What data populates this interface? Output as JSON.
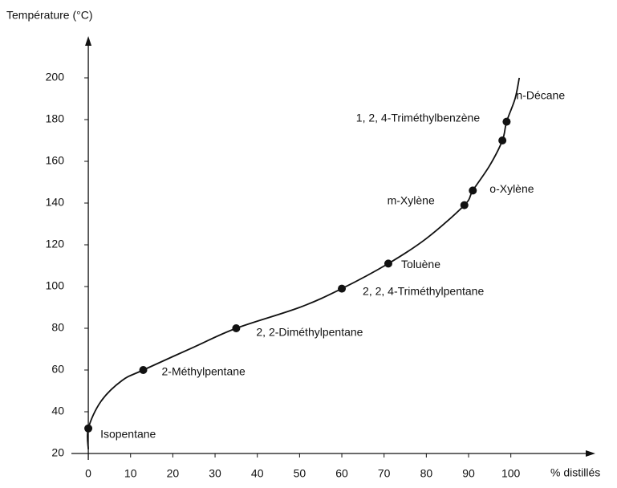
{
  "chart_data": {
    "type": "scatter",
    "y_label": "Température (°C)",
    "x_label": "% distillés",
    "xlim": [
      -4,
      120
    ],
    "ylim": [
      20,
      220
    ],
    "xticks": [
      0,
      10,
      20,
      30,
      40,
      50,
      60,
      70,
      80,
      90,
      100
    ],
    "yticks": [
      20,
      40,
      60,
      80,
      100,
      120,
      140,
      160,
      180,
      200
    ],
    "grid": false,
    "color": "#111111",
    "labels": [
      "Isopentane",
      "2-Méthylpentane",
      "2, 2-Diméthylpentane",
      "2, 2, 4-Triméthylpentane",
      "Toluène",
      "m-Xylène",
      "o-Xylène",
      "1, 2, 4-Triméthylbenzène",
      "n-Décane"
    ],
    "x": [
      0,
      13,
      35,
      60,
      71,
      89,
      91,
      98,
      99
    ],
    "values": [
      32,
      60,
      80,
      99,
      111,
      139,
      146,
      170,
      179
    ],
    "curve": {
      "x": [
        0,
        0,
        3,
        8,
        13,
        25,
        35,
        50,
        60,
        71,
        80,
        89,
        91,
        95,
        98,
        99,
        101,
        102
      ],
      "values": [
        22,
        32,
        45,
        55,
        60,
        71,
        80,
        90,
        99,
        111,
        123,
        139,
        146,
        158,
        170,
        179,
        190,
        200
      ]
    }
  }
}
